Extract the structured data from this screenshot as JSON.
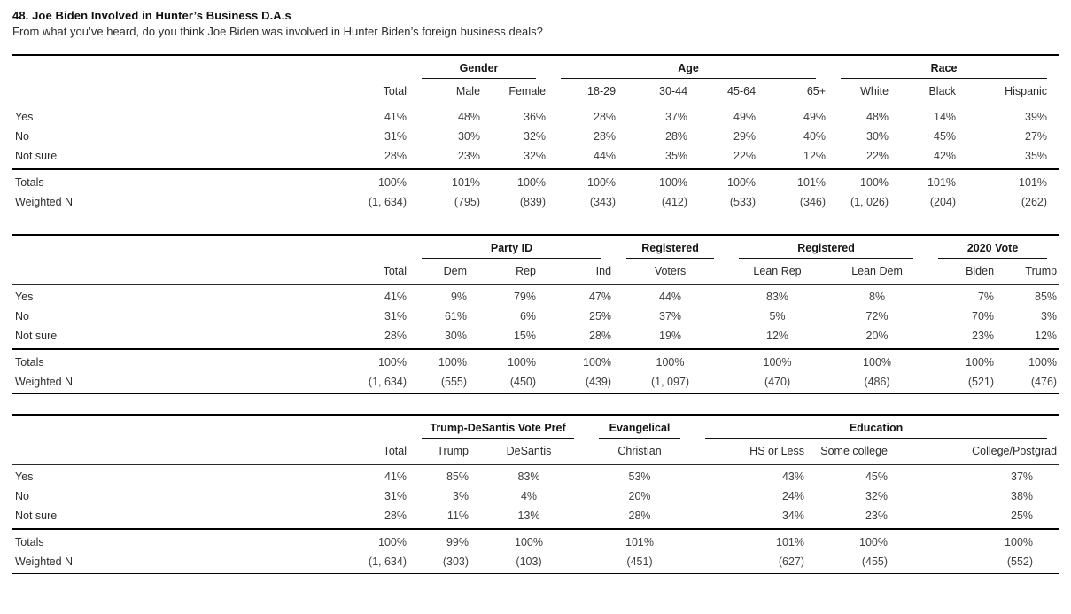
{
  "title": "48. Joe Biden Involved in Hunter’s Business D.A.s",
  "question": "From what you’ve heard, do you think Joe Biden was involved in Hunter Biden’s foreign business deals?",
  "tables": [
    {
      "name": "crosstab-gender-age-race",
      "columns": [
        {
          "label": "",
          "group_id": null,
          "group_label": ""
        },
        {
          "label": "Total",
          "group_id": null,
          "group_label": ""
        },
        {
          "label": "Male",
          "group_id": "gender",
          "group_label": "Gender"
        },
        {
          "label": "Female",
          "group_id": "gender",
          "group_label": "Gender"
        },
        {
          "label": "18-29",
          "group_id": "age",
          "group_label": "Age"
        },
        {
          "label": "30-44",
          "group_id": "age",
          "group_label": "Age"
        },
        {
          "label": "45-64",
          "group_id": "age",
          "group_label": "Age"
        },
        {
          "label": "65+",
          "group_id": "age",
          "group_label": "Age"
        },
        {
          "label": "White",
          "group_id": "race",
          "group_label": "Race"
        },
        {
          "label": "Black",
          "group_id": "race",
          "group_label": "Race"
        },
        {
          "label": "Hispanic",
          "group_id": "race",
          "group_label": "Race"
        }
      ],
      "body_rows": [
        {
          "label": "Yes",
          "values": [
            "41%",
            "48%",
            "36%",
            "28%",
            "37%",
            "49%",
            "49%",
            "48%",
            "14%",
            "39%"
          ]
        },
        {
          "label": "No",
          "values": [
            "31%",
            "30%",
            "32%",
            "28%",
            "28%",
            "29%",
            "40%",
            "30%",
            "45%",
            "27%"
          ]
        },
        {
          "label": "Not sure",
          "values": [
            "28%",
            "23%",
            "32%",
            "44%",
            "35%",
            "22%",
            "12%",
            "22%",
            "42%",
            "35%"
          ]
        }
      ],
      "summary_rows": [
        {
          "label": "Totals",
          "values": [
            "100%",
            "101%",
            "100%",
            "100%",
            "100%",
            "100%",
            "101%",
            "100%",
            "101%",
            "101%"
          ]
        },
        {
          "label": "Weighted N",
          "values": [
            "(1, 634)",
            "(795)",
            "(839)",
            "(343)",
            "(412)",
            "(533)",
            "(346)",
            "(1, 026)",
            "(204)",
            "(262)"
          ]
        }
      ]
    },
    {
      "name": "crosstab-party-registration-2020vote",
      "columns": [
        {
          "label": "",
          "group_id": null,
          "group_label": ""
        },
        {
          "label": "Total",
          "group_id": null,
          "group_label": ""
        },
        {
          "label": "Dem",
          "group_id": "party_id",
          "group_label": "Party ID"
        },
        {
          "label": "Rep",
          "group_id": "party_id",
          "group_label": "Party ID"
        },
        {
          "label": "Ind",
          "group_id": "party_id",
          "group_label": "Party ID"
        },
        {
          "label": "Voters",
          "group_id": "registered",
          "group_label": "Registered"
        },
        {
          "label": "Lean Rep",
          "group_id": "registered_lean",
          "group_label": "Registered"
        },
        {
          "label": "Lean Dem",
          "group_id": "registered_lean",
          "group_label": "Registered"
        },
        {
          "label": "Biden",
          "group_id": "vote_2020",
          "group_label": "2020 Vote"
        },
        {
          "label": "Trump",
          "group_id": "vote_2020",
          "group_label": "2020 Vote"
        }
      ],
      "body_rows": [
        {
          "label": "Yes",
          "values": [
            "41%",
            "9%",
            "79%",
            "47%",
            "44%",
            "83%",
            "8%",
            "7%",
            "85%"
          ]
        },
        {
          "label": "No",
          "values": [
            "31%",
            "61%",
            "6%",
            "25%",
            "37%",
            "5%",
            "72%",
            "70%",
            "3%"
          ]
        },
        {
          "label": "Not sure",
          "values": [
            "28%",
            "30%",
            "15%",
            "28%",
            "19%",
            "12%",
            "20%",
            "23%",
            "12%"
          ]
        }
      ],
      "summary_rows": [
        {
          "label": "Totals",
          "values": [
            "100%",
            "100%",
            "100%",
            "100%",
            "100%",
            "100%",
            "100%",
            "100%",
            "100%"
          ]
        },
        {
          "label": "Weighted N",
          "values": [
            "(1, 634)",
            "(555)",
            "(450)",
            "(439)",
            "(1, 097)",
            "(470)",
            "(486)",
            "(521)",
            "(476)"
          ]
        }
      ]
    },
    {
      "name": "crosstab-votepref-evangelical-education",
      "columns": [
        {
          "label": "",
          "group_id": null,
          "group_label": ""
        },
        {
          "label": "Total",
          "group_id": null,
          "group_label": ""
        },
        {
          "label": "Trump",
          "group_id": "trump_desantis",
          "group_label": "Trump-DeSantis Vote Pref"
        },
        {
          "label": "DeSantis",
          "group_id": "trump_desantis",
          "group_label": "Trump-DeSantis Vote Pref"
        },
        {
          "label": "Christian",
          "group_id": "evangelical",
          "group_label": "Evangelical"
        },
        {
          "label": "HS or Less",
          "group_id": "education",
          "group_label": "Education"
        },
        {
          "label": "Some college",
          "group_id": "education",
          "group_label": "Education"
        },
        {
          "label": "College/Postgrad",
          "group_id": "education",
          "group_label": "Education"
        }
      ],
      "body_rows": [
        {
          "label": "Yes",
          "values": [
            "41%",
            "85%",
            "83%",
            "53%",
            "43%",
            "45%",
            "37%"
          ]
        },
        {
          "label": "No",
          "values": [
            "31%",
            "3%",
            "4%",
            "20%",
            "24%",
            "32%",
            "38%"
          ]
        },
        {
          "label": "Not sure",
          "values": [
            "28%",
            "11%",
            "13%",
            "28%",
            "34%",
            "23%",
            "25%"
          ]
        }
      ],
      "summary_rows": [
        {
          "label": "Totals",
          "values": [
            "100%",
            "99%",
            "100%",
            "101%",
            "101%",
            "100%",
            "100%"
          ]
        },
        {
          "label": "Weighted N",
          "values": [
            "(1, 634)",
            "(303)",
            "(103)",
            "(451)",
            "(627)",
            "(455)",
            "(552)"
          ]
        }
      ]
    }
  ]
}
